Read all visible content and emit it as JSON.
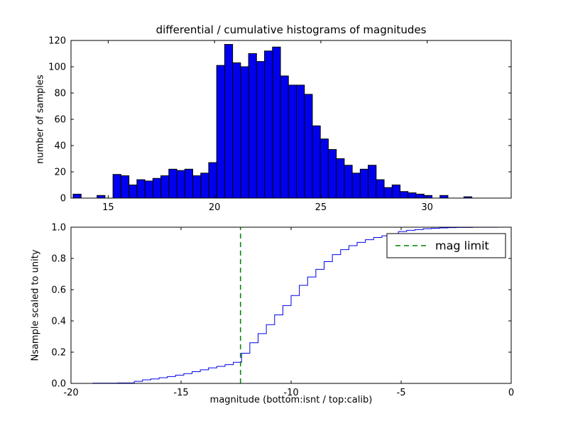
{
  "figure": {
    "background": "#ffffff"
  },
  "chart_data": [
    {
      "type": "bar",
      "role": "differential-histogram",
      "title": "differential / cumulative histograms of magnitudes",
      "ylabel": "number of samples",
      "xlim": [
        13.25,
        33.95
      ],
      "ylim": [
        0,
        120
      ],
      "xticks": [
        15,
        20,
        25,
        30
      ],
      "xticklabels": [
        "15",
        "20",
        "25",
        "30"
      ],
      "yticks": [
        0,
        20,
        40,
        60,
        80,
        100,
        120
      ],
      "yticklabels": [
        "0",
        "20",
        "40",
        "60",
        "80",
        "100",
        "120"
      ],
      "grid": false,
      "bar_color": "#0000ee",
      "bar_edge": "#000000",
      "bin_start": 13.35,
      "bin_width": 0.375,
      "counts": [
        3,
        0,
        0,
        2,
        0,
        18,
        17,
        10,
        14,
        13,
        15,
        17,
        22,
        21,
        22,
        17,
        19,
        27,
        101,
        117,
        103,
        100,
        110,
        104,
        112,
        115,
        93,
        86,
        86,
        79,
        55,
        45,
        37,
        30,
        25,
        19,
        22,
        25,
        14,
        8,
        10,
        5,
        4,
        3,
        2,
        0,
        2,
        0,
        0,
        1
      ]
    },
    {
      "type": "line",
      "role": "cumulative-histogram",
      "ylabel": "Nsample scaled to unity",
      "xlabel": "magnitude (bottom:isnt / top:calib)",
      "xlim": [
        -20,
        0
      ],
      "ylim": [
        0,
        1
      ],
      "xticks": [
        -20,
        -15,
        -10,
        -5,
        0
      ],
      "xticklabels": [
        "-20",
        "-15",
        "-10",
        "-5",
        "0"
      ],
      "yticks": [
        0.0,
        0.2,
        0.4,
        0.6,
        0.8,
        1.0
      ],
      "yticklabels": [
        "0.0",
        "0.2",
        "0.4",
        "0.6",
        "0.8",
        "1.0"
      ],
      "grid": false,
      "line_color": "#0000ee",
      "normalized": true,
      "bin_start": -19.0,
      "bin_width": 0.375,
      "counts": [
        3,
        0,
        0,
        2,
        0,
        18,
        17,
        10,
        14,
        13,
        15,
        17,
        22,
        21,
        22,
        17,
        19,
        27,
        101,
        117,
        103,
        100,
        110,
        104,
        112,
        115,
        93,
        86,
        86,
        79,
        55,
        45,
        37,
        30,
        25,
        19,
        22,
        25,
        14,
        8,
        10,
        5,
        4,
        3,
        2,
        0,
        2,
        0,
        0,
        1
      ],
      "mag_limit": {
        "x": -12.3,
        "color": "#008000",
        "dash": true,
        "label": "mag limit"
      },
      "legend": {
        "position": "upper right",
        "entries": [
          {
            "label": "mag limit",
            "color": "#008000",
            "dash": true
          }
        ]
      }
    }
  ]
}
